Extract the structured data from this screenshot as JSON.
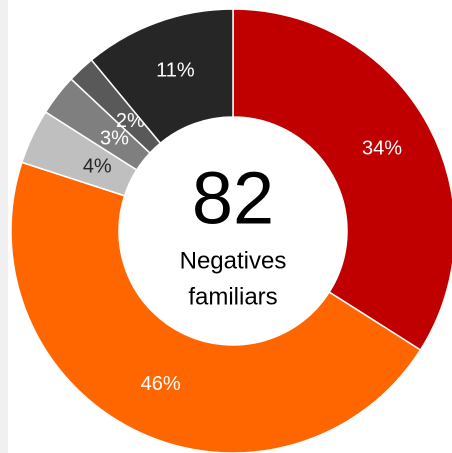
{
  "chart_data": {
    "type": "donut",
    "values": [
      34,
      46,
      4,
      3,
      2,
      11
    ],
    "value_labels": [
      "34%",
      "46%",
      "4%",
      "3%",
      "2%",
      "11%"
    ],
    "colors": [
      "#c00000",
      "#ff6600",
      "#bfbfbf",
      "#7f7f7f",
      "#595959",
      "#262626"
    ],
    "label_colors": [
      "#ffffff",
      "#ffffff",
      "#262626",
      "#ffffff",
      "#ffffff",
      "#ffffff"
    ],
    "center_value": 82,
    "center_text": [
      "Negatives",
      "familiars"
    ]
  }
}
